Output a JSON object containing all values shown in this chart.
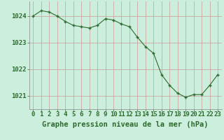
{
  "x": [
    0,
    1,
    2,
    3,
    4,
    5,
    6,
    7,
    8,
    9,
    10,
    11,
    12,
    13,
    14,
    15,
    16,
    17,
    18,
    19,
    20,
    21,
    22,
    23
  ],
  "y": [
    1024.0,
    1024.2,
    1024.15,
    1024.0,
    1023.8,
    1023.65,
    1023.6,
    1023.55,
    1023.65,
    1023.9,
    1023.85,
    1023.7,
    1023.6,
    1023.2,
    1022.85,
    1022.6,
    1021.8,
    1021.4,
    1021.1,
    1020.95,
    1021.05,
    1021.05,
    1021.4,
    1021.8
  ],
  "line_color": "#2d6a2d",
  "marker_color": "#2d6a2d",
  "bg_color": "#cceedd",
  "grid_color": "#cc9999",
  "ylabel_ticks": [
    1021,
    1022,
    1023,
    1024
  ],
  "xlabel_label": "Graphe pression niveau de la mer (hPa)",
  "xlim": [
    -0.5,
    23.5
  ],
  "ylim": [
    1020.5,
    1024.55
  ],
  "tick_label_color": "#2d6a2d",
  "xlabel_color": "#2d6a2d",
  "xlabel_fontsize": 7.5,
  "tick_fontsize": 6.5
}
